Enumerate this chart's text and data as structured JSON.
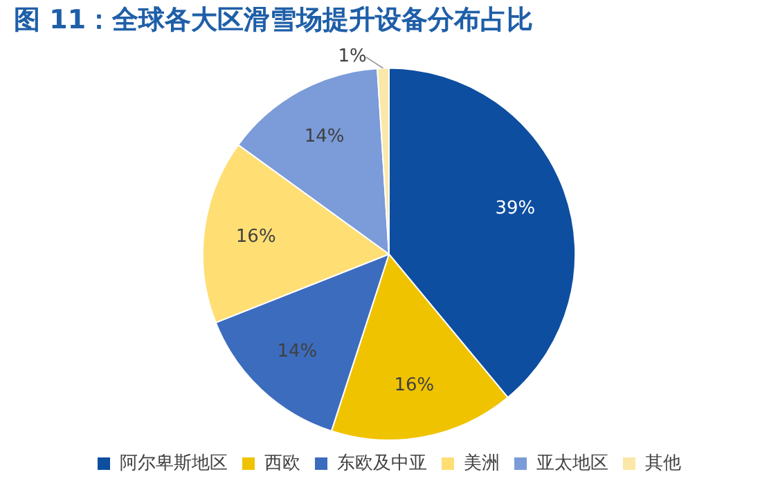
{
  "chart_data": {
    "type": "pie",
    "title": "图 11：全球各大区滑雪场提升设备分布占比",
    "categories": [
      "阿尔卑斯地区",
      "西欧",
      "东欧及中亚",
      "美洲",
      "亚太地区",
      "其他"
    ],
    "values": [
      39,
      16,
      14,
      16,
      14,
      1
    ],
    "colors": [
      "#0d4ea0",
      "#f0c300",
      "#3c6cbd",
      "#ffde74",
      "#7b9bd9",
      "#fbe8a8"
    ],
    "value_labels": [
      "39%",
      "16%",
      "14%",
      "16%",
      "14%",
      "1%"
    ],
    "legend": "bottom"
  }
}
